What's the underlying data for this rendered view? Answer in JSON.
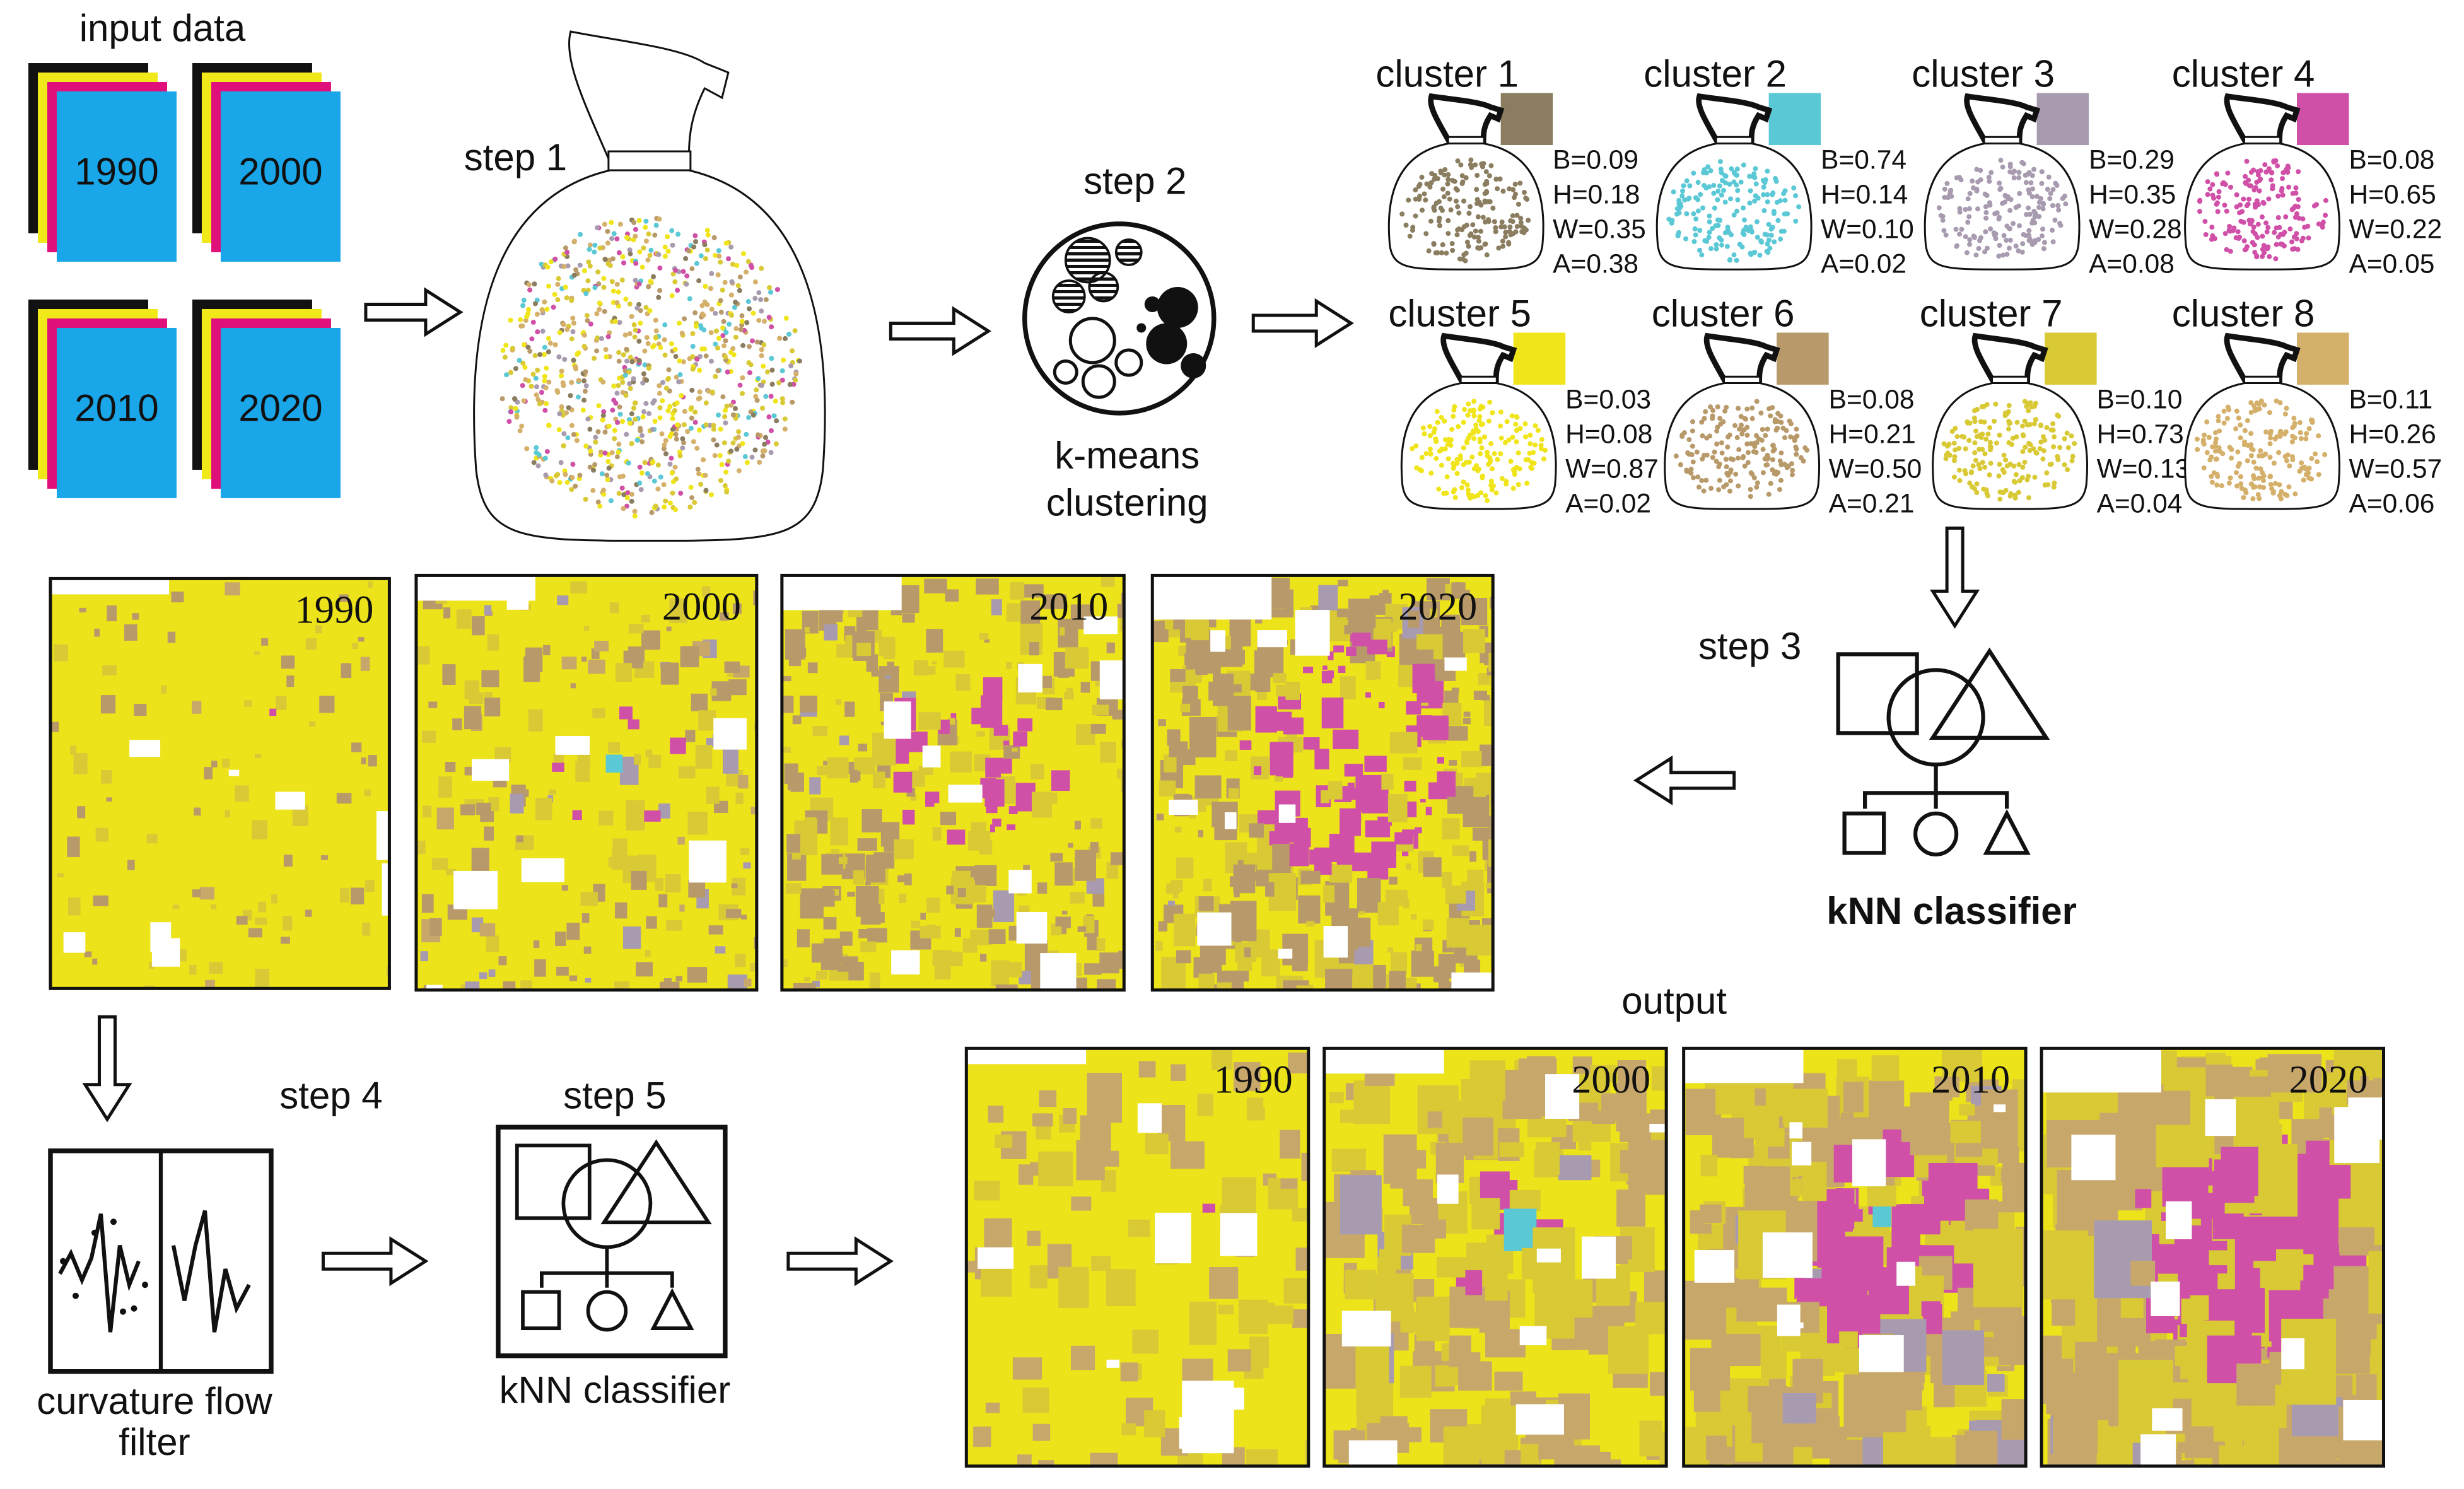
{
  "input": {
    "title": "input data",
    "years": [
      "1990",
      "2000",
      "2010",
      "2020"
    ]
  },
  "step1": {
    "title": "step 1"
  },
  "step2": {
    "title": "step 2",
    "label": [
      "k-means",
      "clustering"
    ]
  },
  "clusters": [
    {
      "name": "cluster 1",
      "color": "#8a7d60",
      "stats": [
        "B=0.09",
        "H=0.18",
        "W=0.35",
        "A=0.38"
      ]
    },
    {
      "name": "cluster 2",
      "color": "#5bc8d6",
      "stats": [
        "B=0.74",
        "H=0.14",
        "W=0.10",
        "A=0.02"
      ]
    },
    {
      "name": "cluster 3",
      "color": "#a89bb0",
      "stats": [
        "B=0.29",
        "H=0.35",
        "W=0.28",
        "A=0.08"
      ]
    },
    {
      "name": "cluster 4",
      "color": "#d050a8",
      "stats": [
        "B=0.08",
        "H=0.65",
        "W=0.22",
        "A=0.05"
      ]
    },
    {
      "name": "cluster 5",
      "color": "#f0e51a",
      "stats": [
        "B=0.03",
        "H=0.08",
        "W=0.87",
        "A=0.02"
      ]
    },
    {
      "name": "cluster 6",
      "color": "#b89a6a",
      "stats": [
        "B=0.08",
        "H=0.21",
        "W=0.50",
        "A=0.21"
      ]
    },
    {
      "name": "cluster 7",
      "color": "#d8c935",
      "stats": [
        "B=0.10",
        "H=0.73",
        "W=0.13",
        "A=0.04"
      ]
    },
    {
      "name": "cluster 8",
      "color": "#d4b06a",
      "stats": [
        "B=0.11",
        "H=0.26",
        "W=0.57",
        "A=0.06"
      ]
    }
  ],
  "step3": {
    "title": "step 3",
    "classifier": "kNN classifier"
  },
  "classified": {
    "years": [
      "1990",
      "2000",
      "2010",
      "2020"
    ]
  },
  "step4": {
    "title": "step 4",
    "label": [
      "curvature flow",
      "filter"
    ]
  },
  "step5": {
    "title": "step 5",
    "classifier": "kNN classifier"
  },
  "output": {
    "title": "output",
    "years": [
      "1990",
      "2000",
      "2010",
      "2020"
    ]
  }
}
